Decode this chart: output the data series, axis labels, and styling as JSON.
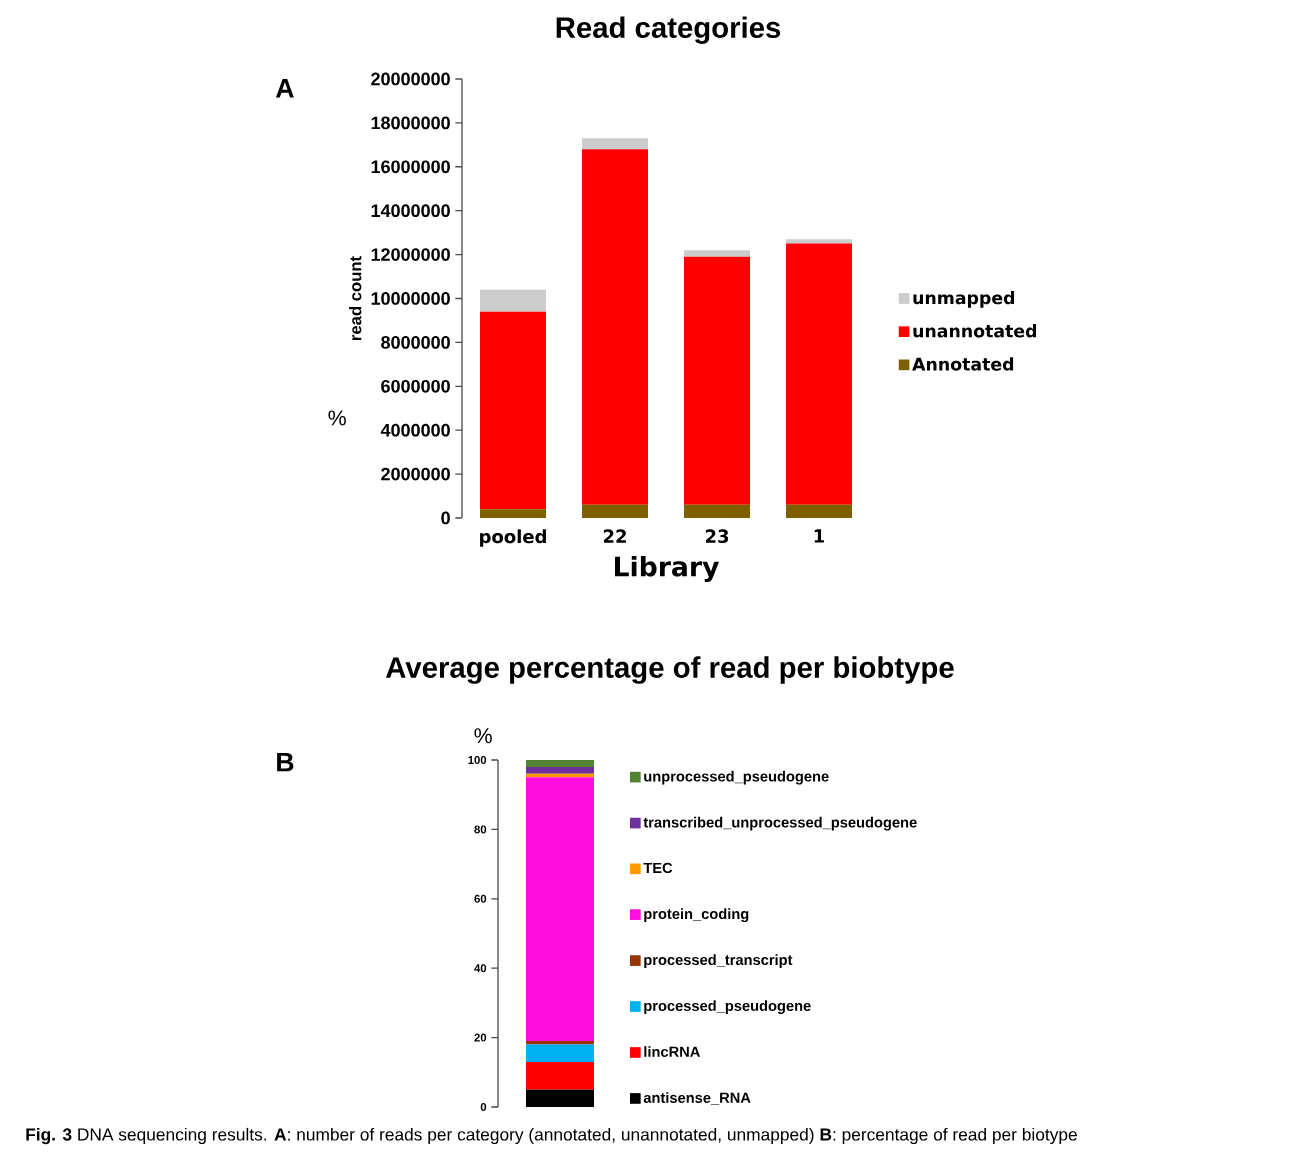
{
  "chart_data": [
    {
      "type": "bar",
      "stacked": true,
      "title": "Read categories",
      "xlabel": "Library",
      "ylabel": "read count",
      "categories": [
        "pooled",
        "22",
        "23",
        "1"
      ],
      "series": [
        {
          "name": "Annotated",
          "color": "#7f6000",
          "values": [
            400000,
            600000,
            600000,
            600000
          ]
        },
        {
          "name": "unannotated",
          "color": "#ff0000",
          "values": [
            9000000,
            16200000,
            11300000,
            11900000
          ]
        },
        {
          "name": "unmapped",
          "color": "#cccccc",
          "values": [
            1000000,
            500000,
            300000,
            200000
          ]
        }
      ],
      "ylim": [
        0,
        20000000
      ],
      "yticks": [
        0,
        2000000,
        4000000,
        6000000,
        8000000,
        10000000,
        12000000,
        14000000,
        16000000,
        18000000,
        20000000
      ],
      "legend": "right",
      "annotations": [
        "A",
        "%"
      ]
    },
    {
      "type": "bar",
      "stacked": true,
      "title": "Average percentage of read per biobtype",
      "ylabel": "%",
      "categories": [
        null
      ],
      "series": [
        {
          "name": "antisense_RNA",
          "color": "#000000",
          "values": [
            5
          ]
        },
        {
          "name": "lincRNA",
          "color": "#ff0000",
          "values": [
            8
          ]
        },
        {
          "name": "processed_pseudogene",
          "color": "#00b0f0",
          "values": [
            5
          ]
        },
        {
          "name": "processed_transcript",
          "color": "#993300",
          "values": [
            1
          ]
        },
        {
          "name": "protein_coding",
          "color": "#ff0ee0",
          "values": [
            76
          ]
        },
        {
          "name": "TEC",
          "color": "#ff9900",
          "values": [
            1
          ]
        },
        {
          "name": "transcribed_unprocessed_pseudogene",
          "color": "#7030a0",
          "values": [
            2
          ]
        },
        {
          "name": "unprocessed_pseudogene",
          "color": "#548235",
          "values": [
            2
          ]
        }
      ],
      "ylim": [
        0,
        100
      ],
      "yticks": [
        0,
        20,
        40,
        60,
        80,
        100
      ],
      "legend": "right",
      "annotations": [
        "B",
        "**Fig. 3** DNA sequencing results. **A**: number of reads per category (annotated, unannotated, unmapped) **B**: percentage of read per biotype"
      ]
    }
  ]
}
